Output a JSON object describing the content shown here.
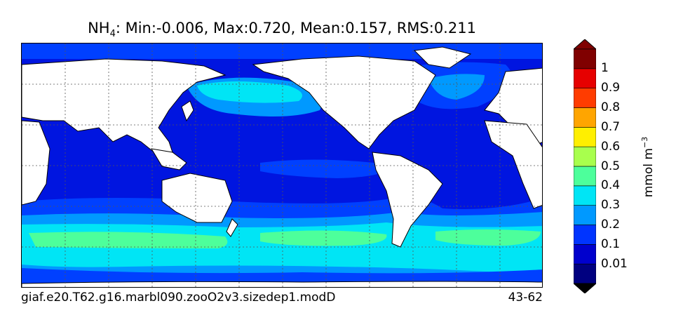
{
  "title": {
    "species": "NH",
    "species_sub": "4",
    "stats": ": Min:-0.006, Max:0.720, Mean:0.157, RMS:0.211"
  },
  "footer": {
    "case_name": "giaf.e20.T62.g16.marbl090.zooO2v3.sizedep1.modD",
    "years": "43-62"
  },
  "colorbar": {
    "units_base": "mmol m",
    "units_exp": "−3",
    "levels": [
      "0.01",
      "0.1",
      "0.2",
      "0.3",
      "0.4",
      "0.5",
      "0.6",
      "0.7",
      "0.8",
      "0.9",
      "1"
    ],
    "colors": [
      "#000080",
      "#0000cd",
      "#0034ff",
      "#0099ff",
      "#00e5f5",
      "#4dff9b",
      "#a8ff4d",
      "#ffef00",
      "#ffa500",
      "#ff3c00",
      "#e60000",
      "#800000"
    ],
    "extend": "both"
  },
  "map": {
    "land_color": "#ffffff",
    "coastline_color": "#000000",
    "gridlines": "dotted"
  }
}
